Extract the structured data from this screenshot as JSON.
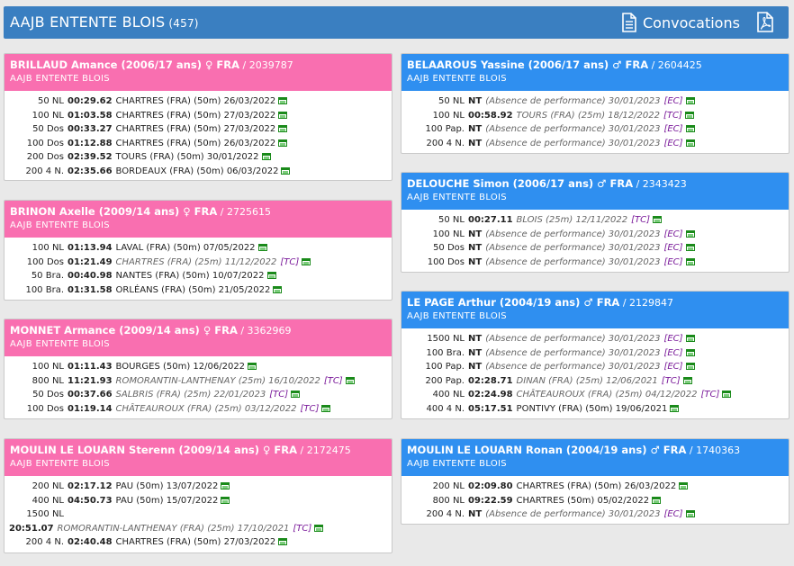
{
  "header": {
    "title": "AAJB ENTENTE BLOIS",
    "count": "(457)",
    "convocations": "Convocations"
  },
  "icons": {
    "document": "document-icon",
    "pdf": "pdf-icon",
    "result": "result-sheet-icon"
  },
  "colors": {
    "female": "#f96fb0",
    "male": "#2f8ff0",
    "bar": "#3a7fc1"
  },
  "cards": [
    {
      "sex": "f",
      "name": "BRILLAUD Amance (2006/17 ans) ♀ FRA",
      "license": "/ 2039787",
      "club": "AAJB ENTENTE BLOIS",
      "rows": [
        {
          "ev": "50 NL",
          "t": "00:29.62",
          "info": "CHARTRES (FRA) (50m) 26/03/2022",
          "it": false,
          "tc": ""
        },
        {
          "ev": "100 NL",
          "t": "01:03.58",
          "info": "CHARTRES (FRA) (50m) 27/03/2022",
          "it": false,
          "tc": ""
        },
        {
          "ev": "50 Dos",
          "t": "00:33.27",
          "info": "CHARTRES (FRA) (50m) 27/03/2022",
          "it": false,
          "tc": ""
        },
        {
          "ev": "100 Dos",
          "t": "01:12.88",
          "info": "CHARTRES (FRA) (50m) 26/03/2022",
          "it": false,
          "tc": ""
        },
        {
          "ev": "200 Dos",
          "t": "02:39.52",
          "info": "TOURS (FRA) (50m) 30/01/2022",
          "it": false,
          "tc": ""
        },
        {
          "ev": "200 4 N.",
          "t": "02:35.66",
          "info": "BORDEAUX (FRA) (50m) 06/03/2022",
          "it": false,
          "tc": ""
        }
      ]
    },
    {
      "sex": "f",
      "name": "BRINON Axelle (2009/14 ans) ♀ FRA",
      "license": "/ 2725615",
      "club": "AAJB ENTENTE BLOIS",
      "rows": [
        {
          "ev": "100 NL",
          "t": "01:13.94",
          "info": "LAVAL (FRA) (50m) 07/05/2022",
          "it": false,
          "tc": ""
        },
        {
          "ev": "100 Dos",
          "t": "01:21.49",
          "info": "CHARTRES (FRA) (25m) 11/12/2022",
          "it": true,
          "tc": "[TC]"
        },
        {
          "ev": "50 Bra.",
          "t": "00:40.98",
          "info": "NANTES (FRA) (50m) 10/07/2022",
          "it": false,
          "tc": ""
        },
        {
          "ev": "100 Bra.",
          "t": "01:31.58",
          "info": "ORLÉANS (FRA) (50m) 21/05/2022",
          "it": false,
          "tc": ""
        }
      ]
    },
    {
      "sex": "f",
      "name": "MONNET Armance (2009/14 ans) ♀ FRA",
      "license": "/ 3362969",
      "club": "AAJB ENTENTE BLOIS",
      "rows": [
        {
          "ev": "100 NL",
          "t": "01:11.43",
          "info": "BOURGES (50m) 12/06/2022",
          "it": false,
          "tc": ""
        },
        {
          "ev": "800 NL",
          "t": "11:21.93",
          "info": "ROMORANTIN-LANTHENAY (25m) 16/10/2022",
          "it": true,
          "tc": "[TC]"
        },
        {
          "ev": "50 Dos",
          "t": "00:37.66",
          "info": "SALBRIS (FRA) (25m) 22/01/2023",
          "it": true,
          "tc": "[TC]"
        },
        {
          "ev": "100 Dos",
          "t": "01:19.14",
          "info": "CHÂTEAUROUX (FRA) (25m) 03/12/2022",
          "it": true,
          "tc": "[TC]"
        }
      ]
    },
    {
      "sex": "f",
      "name": "MOULIN LE LOUARN Sterenn (2009/14 ans) ♀ FRA",
      "license": "/ 2172475",
      "club": "AAJB ENTENTE BLOIS",
      "rows": [
        {
          "ev": "200 NL",
          "t": "02:17.12",
          "info": "PAU (50m) 13/07/2022",
          "it": false,
          "tc": ""
        },
        {
          "ev": "400 NL",
          "t": "04:50.73",
          "info": "PAU (50m) 15/07/2022",
          "it": false,
          "tc": ""
        },
        {
          "ev": "1500 NL",
          "t": "",
          "info": "",
          "it": false,
          "tc": "",
          "noflag": true
        },
        {
          "ev": "",
          "t": "20:51.07",
          "info": "ROMORANTIN-LANTHENAY (FRA) (25m) 17/10/2021",
          "it": true,
          "tc": "[TC]",
          "wrap": true
        },
        {
          "ev": "200 4 N.",
          "t": "02:40.48",
          "info": "CHARTRES (FRA) (50m) 27/03/2022",
          "it": false,
          "tc": ""
        }
      ]
    },
    {
      "sex": "m",
      "name": "BELAAROUS Yassine (2006/17 ans) ♂ FRA",
      "license": "/ 2604425",
      "club": "AAJB ENTENTE BLOIS",
      "rows": [
        {
          "ev": "50 NL",
          "t": "NT",
          "info": "(Absence de performance) 30/01/2023",
          "it": true,
          "tc": "[EC]"
        },
        {
          "ev": "100 NL",
          "t": "00:58.92",
          "info": "TOURS (FRA) (25m) 18/12/2022",
          "it": true,
          "tc": "[TC]"
        },
        {
          "ev": "100 Pap.",
          "t": "NT",
          "info": "(Absence de performance) 30/01/2023",
          "it": true,
          "tc": "[EC]"
        },
        {
          "ev": "200 4 N.",
          "t": "NT",
          "info": "(Absence de performance) 30/01/2023",
          "it": true,
          "tc": "[EC]"
        }
      ]
    },
    {
      "sex": "m",
      "name": "DELOUCHE Simon (2006/17 ans) ♂ FRA",
      "license": "/ 2343423",
      "club": "AAJB ENTENTE BLOIS",
      "rows": [
        {
          "ev": "50 NL",
          "t": "00:27.11",
          "info": "BLOIS (25m) 12/11/2022",
          "it": true,
          "tc": "[TC]"
        },
        {
          "ev": "100 NL",
          "t": "NT",
          "info": "(Absence de performance) 30/01/2023",
          "it": true,
          "tc": "[EC]"
        },
        {
          "ev": "50 Dos",
          "t": "NT",
          "info": "(Absence de performance) 30/01/2023",
          "it": true,
          "tc": "[EC]"
        },
        {
          "ev": "100 Dos",
          "t": "NT",
          "info": "(Absence de performance) 30/01/2023",
          "it": true,
          "tc": "[EC]"
        }
      ]
    },
    {
      "sex": "m",
      "name": "LE PAGE Arthur (2004/19 ans) ♂ FRA",
      "license": "/ 2129847",
      "club": "AAJB ENTENTE BLOIS",
      "rows": [
        {
          "ev": "1500 NL",
          "t": "NT",
          "info": "(Absence de performance) 30/01/2023",
          "it": true,
          "tc": "[EC]"
        },
        {
          "ev": "100 Bra.",
          "t": "NT",
          "info": "(Absence de performance) 30/01/2023",
          "it": true,
          "tc": "[EC]"
        },
        {
          "ev": "100 Pap.",
          "t": "NT",
          "info": "(Absence de performance) 30/01/2023",
          "it": true,
          "tc": "[EC]"
        },
        {
          "ev": "200 Pap.",
          "t": "02:28.71",
          "info": "DINAN (FRA) (25m) 12/06/2021",
          "it": true,
          "tc": "[TC]"
        },
        {
          "ev": "400 NL",
          "t": "02:24.98",
          "info": "CHÂTEAUROUX (FRA) (25m) 04/12/2022",
          "it": true,
          "tc": "[TC]"
        },
        {
          "ev": "400 4 N.",
          "t": "05:17.51",
          "info": "PONTIVY (FRA) (50m) 19/06/2021",
          "it": false,
          "tc": ""
        }
      ]
    },
    {
      "sex": "m",
      "name": "MOULIN LE LOUARN Ronan (2004/19 ans) ♂ FRA",
      "license": "/ 1740363",
      "club": "AAJB ENTENTE BLOIS",
      "rows": [
        {
          "ev": "200 NL",
          "t": "02:09.80",
          "info": "CHARTRES (FRA) (50m) 26/03/2022",
          "it": false,
          "tc": ""
        },
        {
          "ev": "800 NL",
          "t": "09:22.59",
          "info": "CHARTRES (50m) 05/02/2022",
          "it": false,
          "tc": ""
        },
        {
          "ev": "200 4 N.",
          "t": "NT",
          "info": "(Absence de performance) 30/01/2023",
          "it": true,
          "tc": "[EC]"
        }
      ]
    }
  ]
}
